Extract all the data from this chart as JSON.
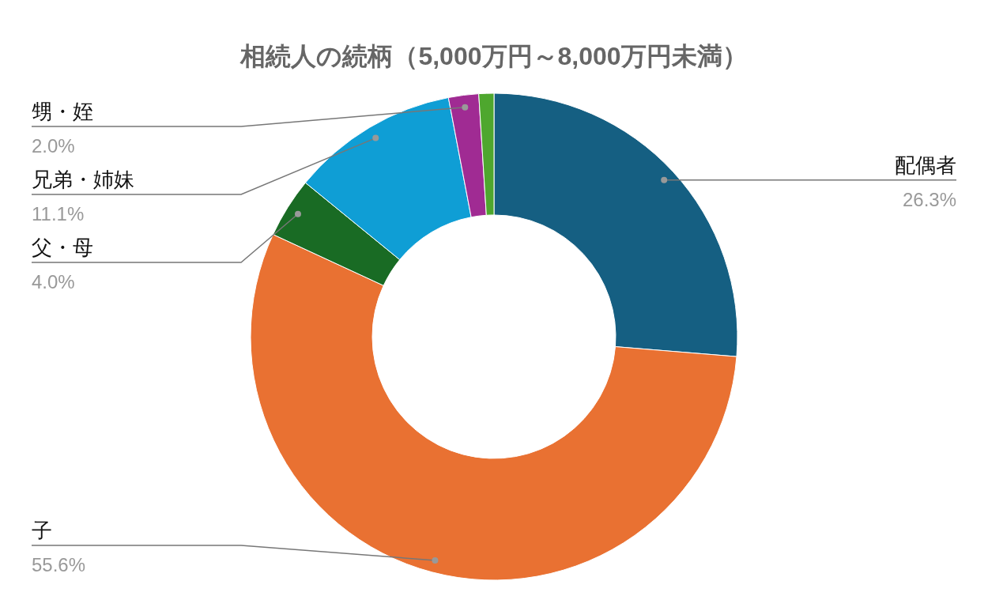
{
  "chart_data": {
    "type": "donut",
    "title": "相続人の続柄（5,000万円～8,000万円未満）",
    "categories": [
      "配偶者",
      "子",
      "父・母",
      "兄弟・姉妹",
      "甥・姪",
      null
    ],
    "values": [
      26.3,
      55.6,
      4.0,
      11.1,
      2.0,
      1.0
    ],
    "colors": [
      "#155f82",
      "#e97132",
      "#196b24",
      "#0f9ed5",
      "#a02b93",
      "#4ea72e"
    ],
    "value_labels": [
      "26.3%",
      "55.6%",
      "4.0%",
      "11.1%",
      "2.0%",
      null
    ]
  }
}
